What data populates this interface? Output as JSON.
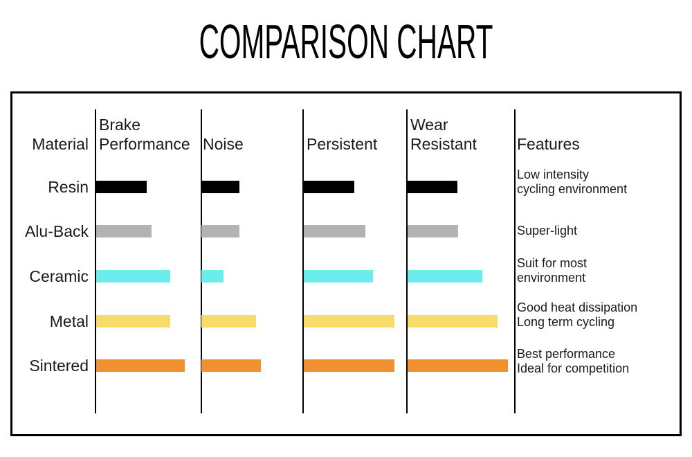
{
  "title": "COMPARISON CHART",
  "table": {
    "columns": [
      "Material",
      "Brake\nPerformance",
      "Noise",
      "Persistent",
      "Wear\nResistant",
      "Features"
    ],
    "rows": [
      {
        "label": "Resin",
        "color": "#000000",
        "bars": [
          73,
          55,
          73,
          72
        ],
        "feature": "Low intensity\ncycling environment"
      },
      {
        "label": "Alu-Back",
        "color": "#b3b3b3",
        "bars": [
          80,
          55,
          89,
          73
        ],
        "feature": "Super-light"
      },
      {
        "label": "Ceramic",
        "color": "#6beded",
        "bars": [
          107,
          32,
          100,
          108
        ],
        "feature": "Suit for most\nenvironment"
      },
      {
        "label": "Metal",
        "color": "#f8dc69",
        "bars": [
          107,
          79,
          131,
          130
        ],
        "feature": "Good heat dissipation\nLong term cycling"
      },
      {
        "label": "Sintered",
        "color": "#f0902f",
        "bars": [
          128,
          86,
          131,
          145
        ],
        "feature": "Best performance\nIdeal for competition"
      }
    ]
  },
  "chart_data": {
    "type": "bar",
    "orientation": "horizontal",
    "title": "COMPARISON CHART",
    "note": "Qualitative comparison chart with no numeric axis; values are rendered bar lengths in pixels (longer = stronger/greater).",
    "categories": [
      "Resin",
      "Alu-Back",
      "Ceramic",
      "Metal",
      "Sintered"
    ],
    "series": [
      {
        "name": "Brake Performance",
        "values": [
          73,
          80,
          107,
          107,
          128
        ]
      },
      {
        "name": "Noise",
        "values": [
          55,
          55,
          32,
          79,
          86
        ]
      },
      {
        "name": "Persistent",
        "values": [
          73,
          89,
          100,
          131,
          131
        ]
      },
      {
        "name": "Wear Resistant",
        "values": [
          72,
          73,
          108,
          130,
          145
        ]
      }
    ],
    "bar_colors": [
      "#000000",
      "#b3b3b3",
      "#6beded",
      "#f8dc69",
      "#f0902f"
    ],
    "features": [
      "Low intensity cycling environment",
      "Super-light",
      "Suit for most environment",
      "Good heat dissipation Long term cycling",
      "Best performance Ideal for competition"
    ],
    "legend_position": "none",
    "grid": false
  }
}
